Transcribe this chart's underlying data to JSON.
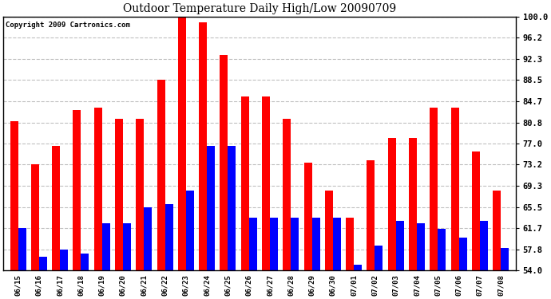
{
  "title": "Outdoor Temperature Daily High/Low 20090709",
  "copyright": "Copyright 2009 Cartronics.com",
  "dates": [
    "06/15",
    "06/16",
    "06/17",
    "06/18",
    "06/19",
    "06/20",
    "06/21",
    "06/22",
    "06/23",
    "06/24",
    "06/25",
    "06/26",
    "06/27",
    "06/28",
    "06/29",
    "06/30",
    "07/01",
    "07/02",
    "07/03",
    "07/04",
    "07/05",
    "07/06",
    "07/07",
    "07/08"
  ],
  "highs": [
    81.0,
    73.2,
    76.5,
    83.0,
    83.5,
    81.5,
    81.5,
    88.5,
    100.0,
    99.0,
    93.0,
    85.5,
    85.5,
    81.5,
    73.5,
    68.5,
    63.5,
    74.0,
    78.0,
    78.0,
    83.5,
    83.5,
    75.5,
    68.5
  ],
  "lows": [
    61.7,
    56.5,
    57.8,
    57.0,
    62.5,
    62.5,
    65.5,
    66.0,
    68.5,
    76.5,
    76.5,
    63.5,
    63.5,
    63.5,
    63.5,
    63.5,
    55.0,
    58.5,
    63.0,
    62.5,
    61.5,
    60.0,
    63.0,
    58.0
  ],
  "bar_color_high": "#ff0000",
  "bar_color_low": "#0000ff",
  "background_color": "#ffffff",
  "grid_color": "#c0c0c0",
  "yticks": [
    54.0,
    57.8,
    61.7,
    65.5,
    69.3,
    73.2,
    77.0,
    80.8,
    84.7,
    88.5,
    92.3,
    96.2,
    100.0
  ],
  "ymin": 54.0,
  "ymax": 100.0,
  "bar_width": 0.38
}
